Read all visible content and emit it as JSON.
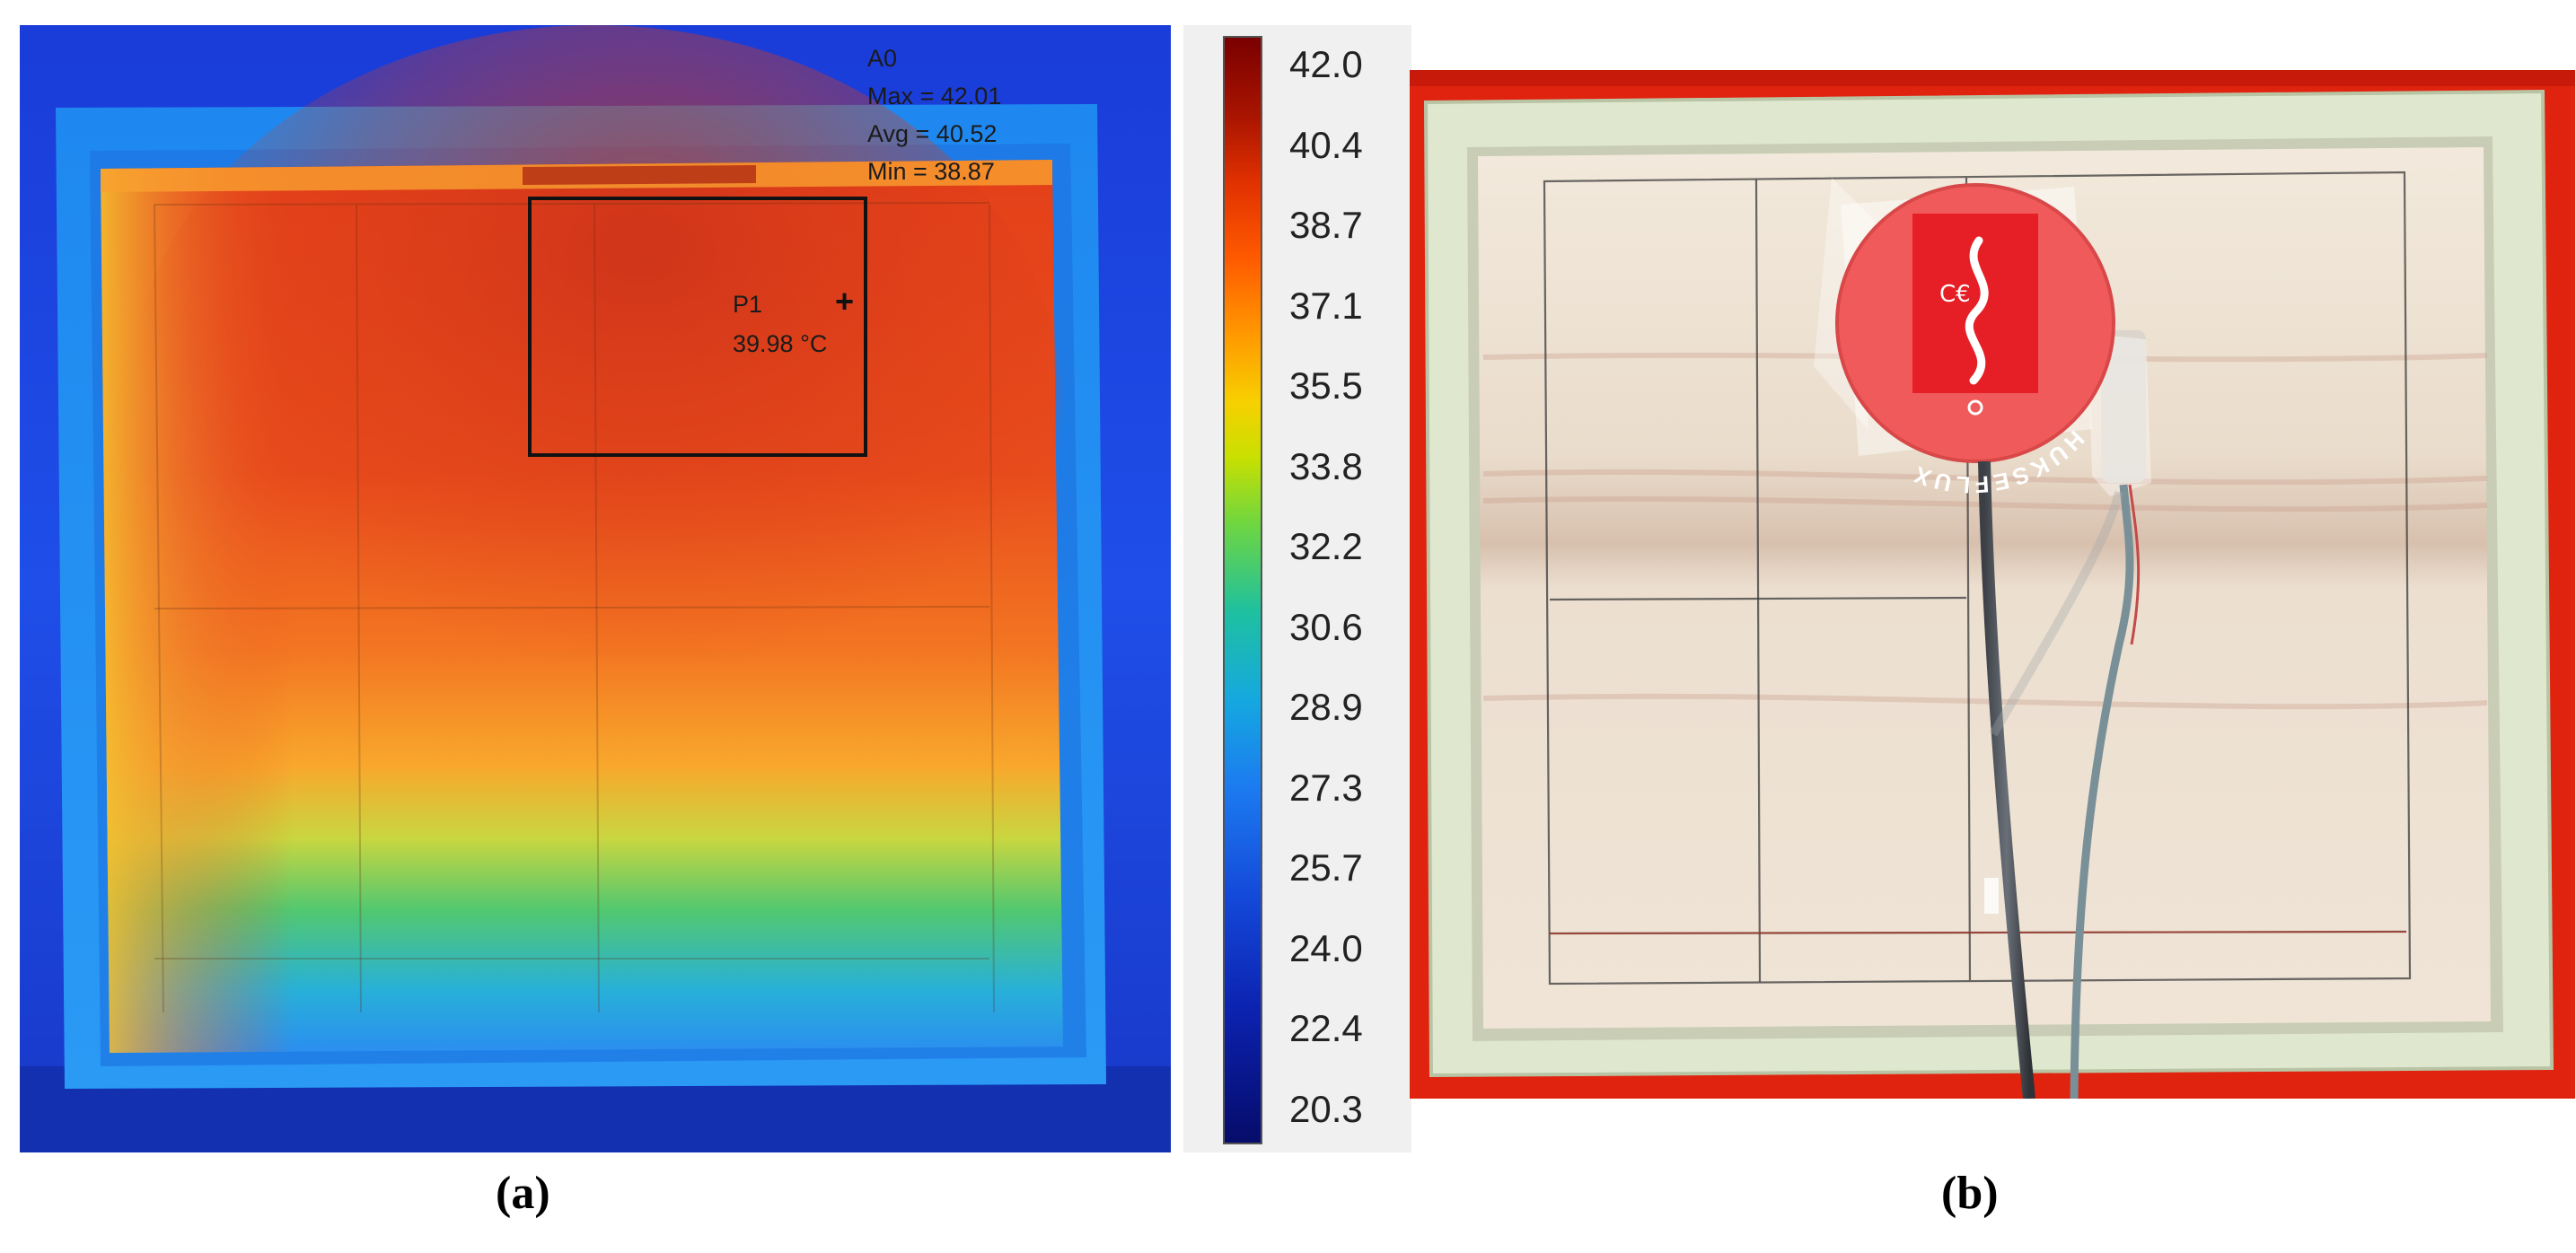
{
  "panel_a": {
    "caption": "(a)",
    "area_label": "A0",
    "stat_max": "Max = 42.01",
    "stat_avg": "Avg = 40.52",
    "stat_min": "Min = 38.87",
    "point_label": "P1",
    "point_value": "39.98 °C",
    "cursor_glyph": "+"
  },
  "colorbar": {
    "ticks": [
      "42.0",
      "40.4",
      "38.7",
      "37.1",
      "35.5",
      "33.8",
      "32.2",
      "30.6",
      "28.9",
      "27.3",
      "25.7",
      "24.0",
      "22.4",
      "20.3"
    ]
  },
  "panel_b": {
    "caption": "(b)",
    "sensor_brand_text": "HUKSEFLUX"
  }
}
